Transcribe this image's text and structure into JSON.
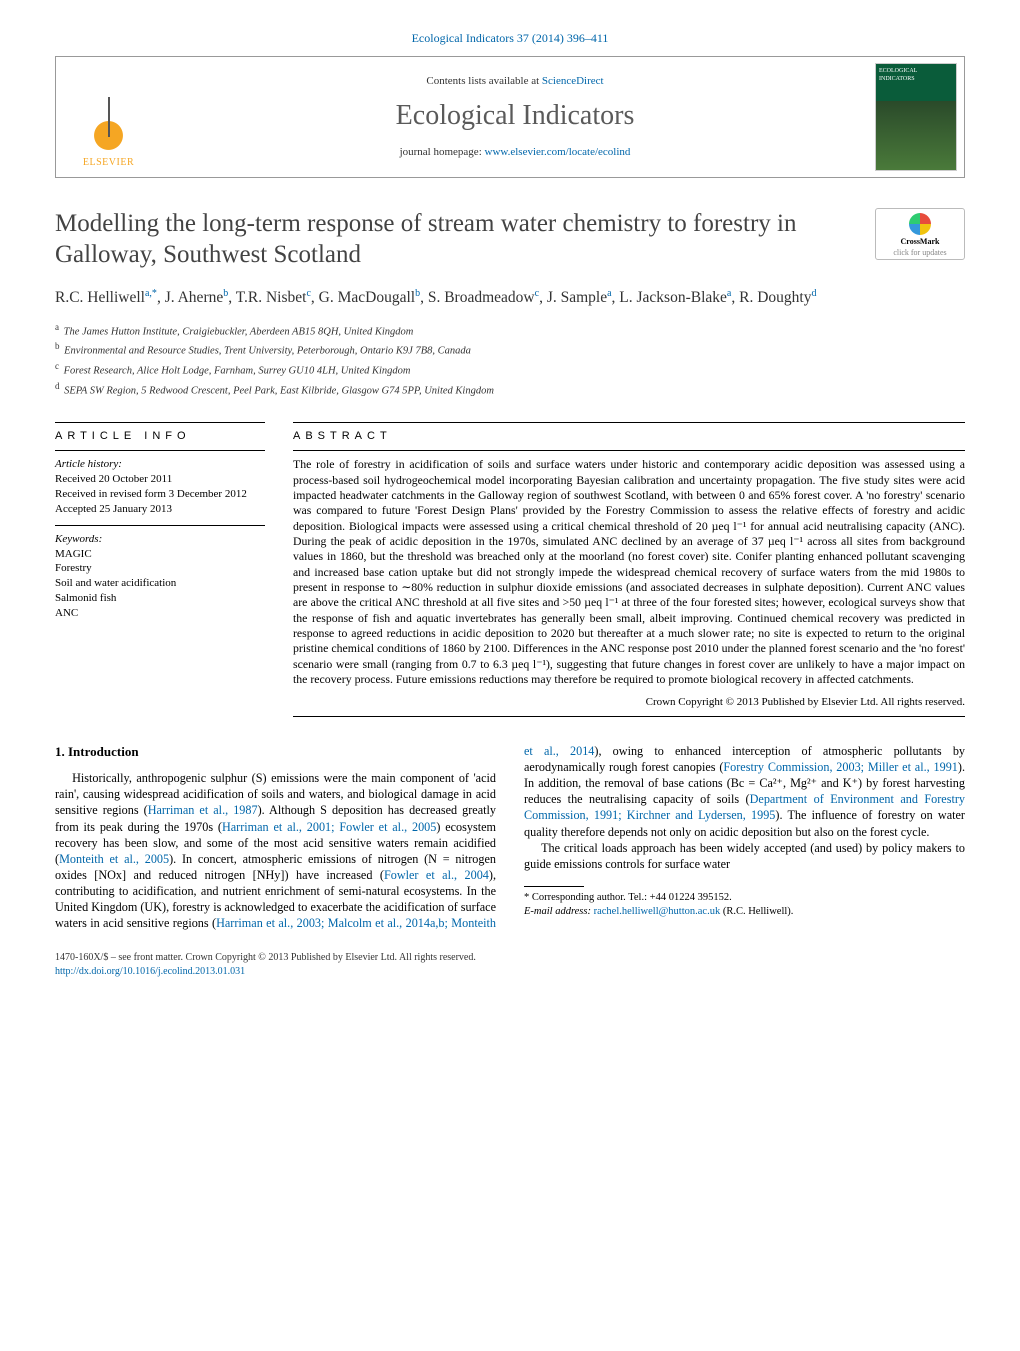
{
  "journal_ref": "Ecological Indicators 37 (2014) 396–411",
  "header": {
    "contents_prefix": "Contents lists available at ",
    "contents_link": "ScienceDirect",
    "journal_title": "Ecological Indicators",
    "homepage_prefix": "journal homepage: ",
    "homepage_url": "www.elsevier.com/locate/ecolind",
    "publisher_name": "ELSEVIER",
    "cover_label": "ECOLOGICAL INDICATORS"
  },
  "crossmark": {
    "label": "CrossMark",
    "sub": "click for updates"
  },
  "article": {
    "title": "Modelling the long-term response of stream water chemistry to forestry in Galloway, Southwest Scotland",
    "authors_html": "R.C. Helliwell<sup>a,*</sup>, J. Aherne<sup>b</sup>, T.R. Nisbet<sup>c</sup>, G. MacDougall<sup>b</sup>, S. Broadmeadow<sup>c</sup>, J. Sample<sup>a</sup>, L. Jackson-Blake<sup>a</sup>, R. Doughty<sup>d</sup>",
    "affiliations": [
      {
        "sup": "a",
        "text": "The James Hutton Institute, Craigiebuckler, Aberdeen AB15 8QH, United Kingdom"
      },
      {
        "sup": "b",
        "text": "Environmental and Resource Studies, Trent University, Peterborough, Ontario K9J 7B8, Canada"
      },
      {
        "sup": "c",
        "text": "Forest Research, Alice Holt Lodge, Farnham, Surrey GU10 4LH, United Kingdom"
      },
      {
        "sup": "d",
        "text": "SEPA SW Region, 5 Redwood Crescent, Peel Park, East Kilbride, Glasgow G74 5PP, United Kingdom"
      }
    ]
  },
  "article_info": {
    "heading": "ARTICLE INFO",
    "history_label": "Article history:",
    "history": [
      "Received 20 October 2011",
      "Received in revised form 3 December 2012",
      "Accepted 25 January 2013"
    ],
    "keywords_label": "Keywords:",
    "keywords": [
      "MAGIC",
      "Forestry",
      "Soil and water acidification",
      "Salmonid fish",
      "ANC"
    ]
  },
  "abstract": {
    "heading": "ABSTRACT",
    "text": "The role of forestry in acidification of soils and surface waters under historic and contemporary acidic deposition was assessed using a process-based soil hydrogeochemical model incorporating Bayesian calibration and uncertainty propagation. The five study sites were acid impacted headwater catchments in the Galloway region of southwest Scotland, with between 0 and 65% forest cover. A 'no forestry' scenario was compared to future 'Forest Design Plans' provided by the Forestry Commission to assess the relative effects of forestry and acidic deposition. Biological impacts were assessed using a critical chemical threshold of 20 µeq l⁻¹ for annual acid neutralising capacity (ANC). During the peak of acidic deposition in the 1970s, simulated ANC declined by an average of 37 µeq l⁻¹ across all sites from background values in 1860, but the threshold was breached only at the moorland (no forest cover) site. Conifer planting enhanced pollutant scavenging and increased base cation uptake but did not strongly impede the widespread chemical recovery of surface waters from the mid 1980s to present in response to ∼80% reduction in sulphur dioxide emissions (and associated decreases in sulphate deposition). Current ANC values are above the critical ANC threshold at all five sites and >50 µeq l⁻¹ at three of the four forested sites; however, ecological surveys show that the response of fish and aquatic invertebrates has generally been small, albeit improving. Continued chemical recovery was predicted in response to agreed reductions in acidic deposition to 2020 but thereafter at a much slower rate; no site is expected to return to the original pristine chemical conditions of 1860 by 2100. Differences in the ANC response post 2010 under the planned forest scenario and the 'no forest' scenario were small (ranging from 0.7 to 6.3 µeq l⁻¹), suggesting that future changes in forest cover are unlikely to have a major impact on the recovery process. Future emissions reductions may therefore be required to promote biological recovery in affected catchments.",
    "copyright": "Crown Copyright © 2013 Published by Elsevier Ltd. All rights reserved."
  },
  "body": {
    "section_heading": "1. Introduction",
    "p1_pre": "Historically, anthropogenic sulphur (S) emissions were the main component of 'acid rain', causing widespread acidification of soils and waters, and biological damage in acid sensitive regions (",
    "p1_link1": "Harriman et al., 1987",
    "p1_mid1": "). Although S deposition has decreased greatly from its peak during the 1970s (",
    "p1_link2": "Harriman et al., 2001; Fowler et al., 2005",
    "p1_mid2": ") ecosystem recovery has been slow, and some of the most acid sensitive waters remain acidified (",
    "p1_link3": "Monteith et al., 2005",
    "p1_mid3": "). In concert, atmospheric emissions of nitrogen (N = nitrogen oxides [NOx] and reduced nitrogen [NHy]) have increased (",
    "p1_link4": "Fowler et al., 2004",
    "p1_mid4": "), contributing to acidification, and nutrient enrichment of semi-natural ecosystems. In the United Kingdom (UK), forestry is acknowledged to exacerbate the acidification of surface waters in acid sensitive regions (",
    "p1_link5": "Harriman et al., 2003; Malcolm et al., 2014a,b; Monteith et al., 2014",
    "p1_mid5": "), owing to enhanced interception of atmospheric pollutants by aerodynamically rough forest canopies (",
    "p1_link6": "Forestry Commission, 2003; Miller et al., 1991",
    "p1_mid6": "). In addition, the removal of base cations (Bc = Ca²⁺, Mg²⁺ and K⁺) by forest harvesting reduces the neutralising capacity of soils (",
    "p1_link7": "Department of Environment and Forestry Commission, 1991; Kirchner and Lydersen, 1995",
    "p1_mid7": "). The influence of forestry on water quality therefore depends not only on acidic deposition but also on the forest cycle.",
    "p2": "The critical loads approach has been widely accepted (and used) by policy makers to guide emissions controls for surface water"
  },
  "footnotes": {
    "corr_label": "* Corresponding author. Tel.: +44 01224 395152.",
    "email_label": "E-mail address: ",
    "email": "rachel.helliwell@hutton.ac.uk",
    "email_paren": " (R.C. Helliwell)."
  },
  "bottom": {
    "issn_line": "1470-160X/$ – see front matter. Crown Copyright © 2013 Published by Elsevier Ltd. All rights reserved.",
    "doi": "http://dx.doi.org/10.1016/j.ecolind.2013.01.031"
  },
  "colors": {
    "link": "#0066aa",
    "title_gray": "#434343",
    "elsevier_orange": "#f5a623"
  }
}
